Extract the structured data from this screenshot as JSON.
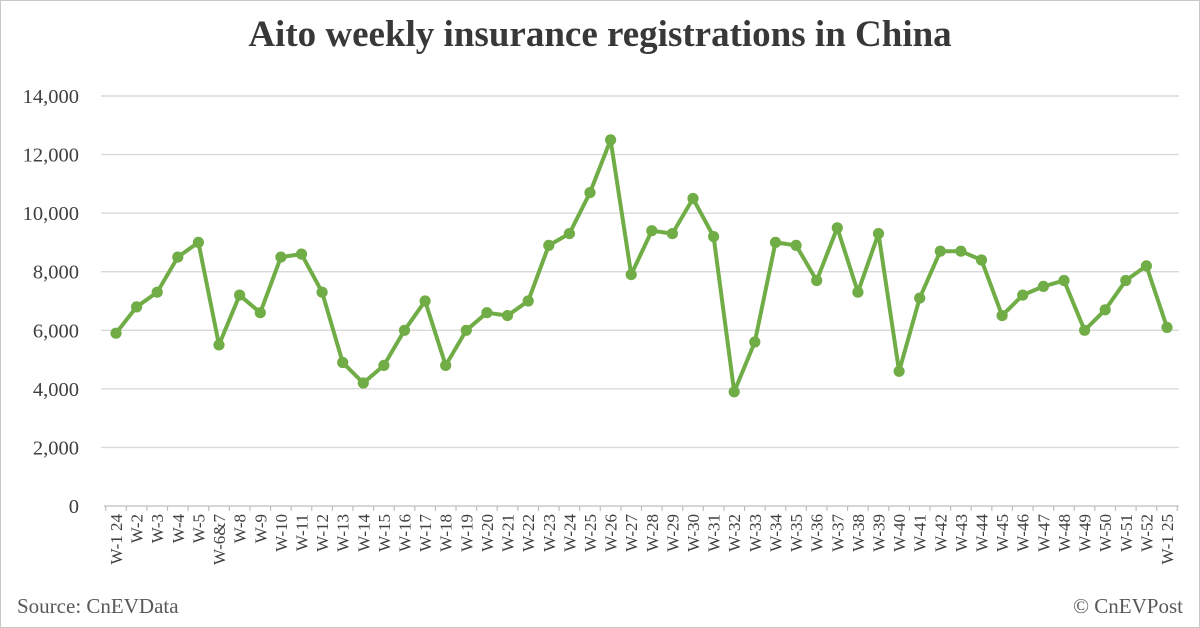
{
  "title": "Aito weekly insurance registrations in China",
  "footer": {
    "source": "Source: CnEVData",
    "copyright": "© CnEVPost"
  },
  "colors": {
    "line": "#70AD47",
    "marker": "#70AD47",
    "grid": "#D9D9D9",
    "axis": "#BFBFBF",
    "tick_label": "#404040",
    "title_text": "#383838",
    "footer_text": "#595959",
    "background": "#FFFFFF"
  },
  "chart_data": {
    "type": "line",
    "title": "Aito weekly insurance registrations in China",
    "series_name": "Aito weekly insurance registrations",
    "categories": [
      "W-1 24",
      "W-2",
      "W-3",
      "W-4",
      "W-5",
      "W-6&7",
      "W-8",
      "W-9",
      "W-10",
      "W-11",
      "W-12",
      "W-13",
      "W-14",
      "W-15",
      "W-16",
      "W-17",
      "W-18",
      "W-19",
      "W-20",
      "W-21",
      "W-22",
      "W-23",
      "W-24",
      "W-25",
      "W-26",
      "W-27",
      "W-28",
      "W-29",
      "W-30",
      "W-31",
      "W-32",
      "W-33",
      "W-34",
      "W-35",
      "W-36",
      "W-37",
      "W-38",
      "W-39",
      "W-40",
      "W-41",
      "W-42",
      "W-43",
      "W-44",
      "W-45",
      "W-46",
      "W-47",
      "W-48",
      "W-49",
      "W-50",
      "W-51",
      "W-52",
      "W-1 25"
    ],
    "values": [
      5900,
      6800,
      7300,
      8500,
      9000,
      5500,
      7200,
      6600,
      8500,
      8600,
      7300,
      4900,
      4200,
      4800,
      6000,
      7000,
      4800,
      6000,
      6600,
      6500,
      7000,
      8900,
      9300,
      10700,
      12500,
      7900,
      9400,
      9300,
      10500,
      9200,
      3900,
      5600,
      9000,
      8900,
      7700,
      9500,
      7300,
      9300,
      4600,
      7100,
      8700,
      8700,
      8400,
      6500,
      7200,
      7500,
      7700,
      6000,
      6700,
      7700,
      8200,
      6100
    ],
    "xlabel": "",
    "ylabel": "",
    "ylim": [
      0,
      14000
    ],
    "yticks": [
      {
        "value": 0,
        "label": "0"
      },
      {
        "value": 2000,
        "label": "2,000"
      },
      {
        "value": 4000,
        "label": "4,000"
      },
      {
        "value": 6000,
        "label": "6,000"
      },
      {
        "value": 8000,
        "label": "8,000"
      },
      {
        "value": 10000,
        "label": "10,000"
      },
      {
        "value": 12000,
        "label": "12,000"
      },
      {
        "value": 14000,
        "label": "14,000"
      }
    ],
    "grid": true,
    "legend_position": "none",
    "marker": "circle",
    "x_label_rotation": -90
  }
}
